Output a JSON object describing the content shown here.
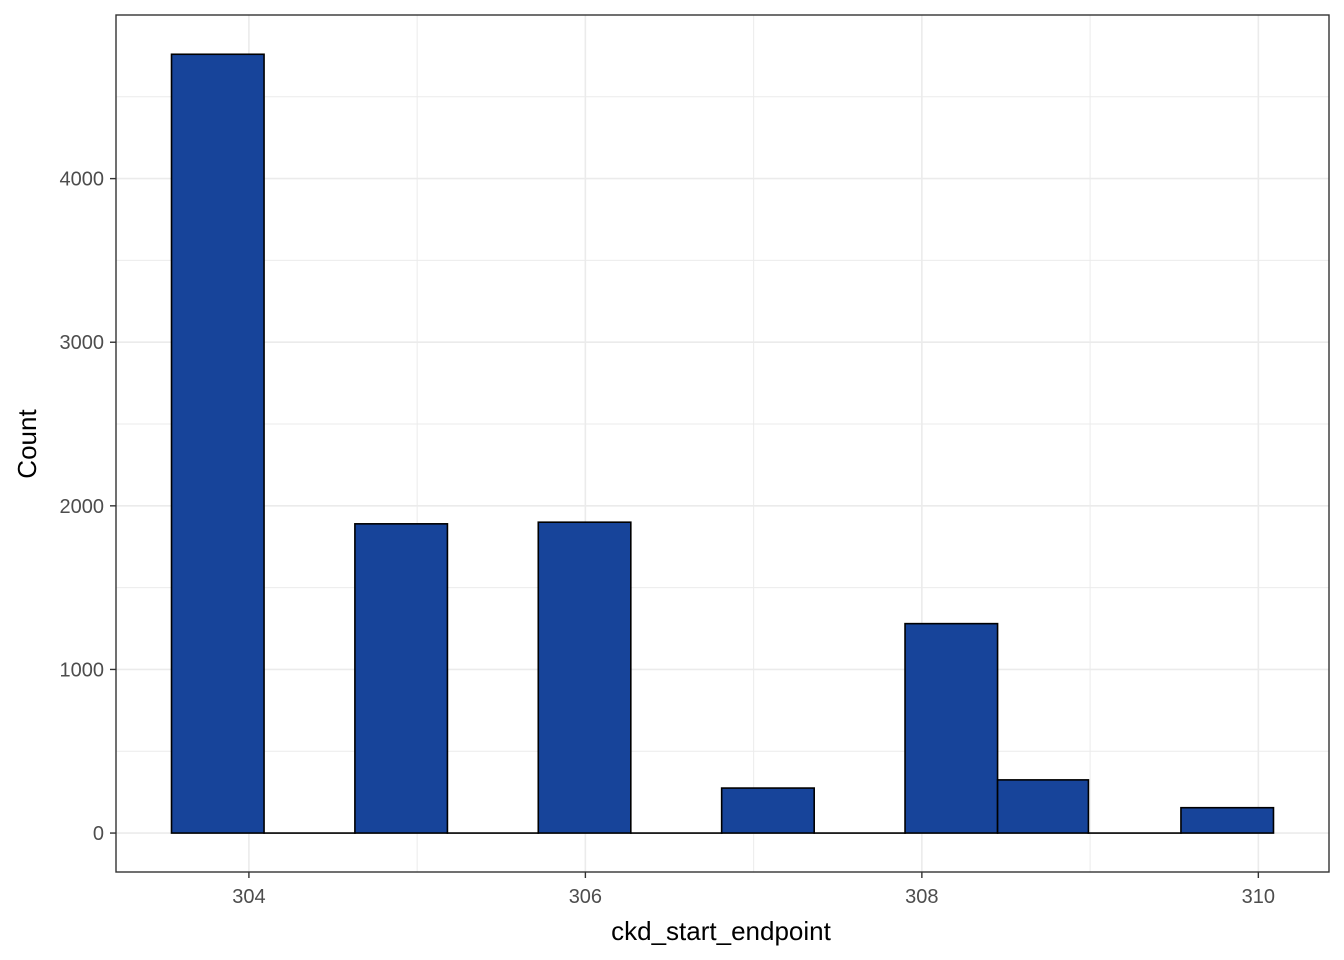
{
  "chart_data": {
    "type": "bar",
    "title": "",
    "xlabel": "ckd_start_endpoint",
    "ylabel": "Count",
    "bin_width": 0.545,
    "bins": [
      {
        "x_start": 303.54,
        "x_end": 304.09,
        "count": 4760
      },
      {
        "x_start": 304.09,
        "x_end": 304.63,
        "count": 0
      },
      {
        "x_start": 304.63,
        "x_end": 305.18,
        "count": 1890
      },
      {
        "x_start": 305.18,
        "x_end": 305.72,
        "count": 0
      },
      {
        "x_start": 305.72,
        "x_end": 306.27,
        "count": 1900
      },
      {
        "x_start": 306.27,
        "x_end": 306.81,
        "count": 0
      },
      {
        "x_start": 306.81,
        "x_end": 307.36,
        "count": 275
      },
      {
        "x_start": 307.36,
        "x_end": 307.9,
        "count": 0
      },
      {
        "x_start": 307.9,
        "x_end": 308.45,
        "count": 1280
      },
      {
        "x_start": 308.45,
        "x_end": 308.99,
        "count": 325
      },
      {
        "x_start": 308.99,
        "x_end": 309.54,
        "count": 0
      },
      {
        "x_start": 309.54,
        "x_end": 310.09,
        "count": 155
      }
    ],
    "xlim": [
      303.21,
      310.42
    ],
    "ylim": [
      -238,
      5000
    ],
    "x_ticks": [
      "304",
      "306",
      "308",
      "310"
    ],
    "y_ticks": [
      "0",
      "1000",
      "2000",
      "3000",
      "4000"
    ],
    "bar_fill": "#17449a",
    "bar_stroke": "#000000",
    "grid": true,
    "grid_color": "#ebebeb",
    "panel_border_color": "#333333",
    "theme": "bw"
  }
}
